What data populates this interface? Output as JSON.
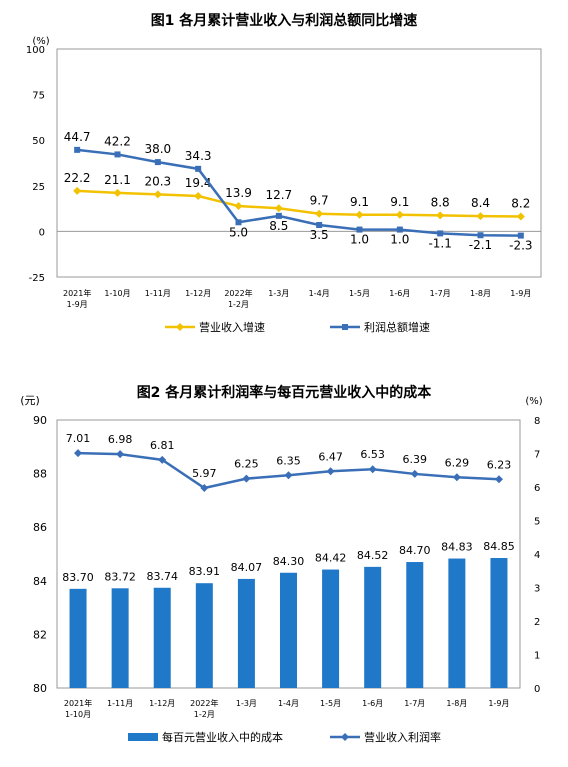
{
  "chart_data": [
    {
      "type": "line",
      "title": "图1  各月累计营业收入与利润总额同比增速",
      "y_unit": "(%)",
      "ylim": [
        -25,
        100
      ],
      "yticks": [
        -25,
        0,
        25,
        50,
        75,
        100
      ],
      "categories": [
        {
          "line1": "2021年",
          "line2": "1-9月"
        },
        {
          "line1": "1-10月",
          "line2": ""
        },
        {
          "line1": "1-11月",
          "line2": ""
        },
        {
          "line1": "1-12月",
          "line2": ""
        },
        {
          "line1": "2022年",
          "line2": "1-2月"
        },
        {
          "line1": "1-3月",
          "line2": ""
        },
        {
          "line1": "1-4月",
          "line2": ""
        },
        {
          "line1": "1-5月",
          "line2": ""
        },
        {
          "line1": "1-6月",
          "line2": ""
        },
        {
          "line1": "1-7月",
          "line2": ""
        },
        {
          "line1": "1-8月",
          "line2": ""
        },
        {
          "line1": "1-9月",
          "line2": ""
        }
      ],
      "series": [
        {
          "name": "营业收入增速",
          "color": "#F2C200",
          "marker": "diamond",
          "values": [
            22.2,
            21.1,
            20.3,
            19.4,
            13.9,
            12.7,
            9.7,
            9.1,
            9.1,
            8.8,
            8.4,
            8.2
          ],
          "labels": [
            "22.2",
            "21.1",
            "20.3",
            "19.4",
            "13.9",
            "12.7",
            "9.7",
            "9.1",
            "9.1",
            "8.8",
            "8.4",
            "8.2"
          ]
        },
        {
          "name": "利润总额增速",
          "color": "#3A6FB7",
          "marker": "square",
          "values": [
            44.7,
            42.2,
            38.0,
            34.3,
            5.0,
            8.5,
            3.5,
            1.0,
            1.0,
            -1.1,
            -2.1,
            -2.3
          ],
          "labels": [
            "44.7",
            "42.2",
            "38.0",
            "34.3",
            "5.0",
            "8.5",
            "3.5",
            "1.0",
            "1.0",
            "-1.1",
            "-2.1",
            "-2.3"
          ]
        }
      ],
      "legend_position": "bottom",
      "grid": false
    },
    {
      "type": "bar",
      "title": "图2  各月累计利润率与每百元营业收入中的成本",
      "y_unit_left": "(元)",
      "y_unit_right": "(%)",
      "ylim_left": [
        80,
        90
      ],
      "yticks_left": [
        80,
        82,
        84,
        86,
        88,
        90
      ],
      "ylim_right": [
        0,
        8
      ],
      "yticks_right": [
        0,
        1,
        2,
        3,
        4,
        5,
        6,
        7,
        8
      ],
      "categories": [
        {
          "line1": "2021年",
          "line2": "1-10月"
        },
        {
          "line1": "1-11月",
          "line2": ""
        },
        {
          "line1": "1-12月",
          "line2": ""
        },
        {
          "line1": "2022年",
          "line2": "1-2月"
        },
        {
          "line1": "1-3月",
          "line2": ""
        },
        {
          "line1": "1-4月",
          "line2": ""
        },
        {
          "line1": "1-5月",
          "line2": ""
        },
        {
          "line1": "1-6月",
          "line2": ""
        },
        {
          "line1": "1-7月",
          "line2": ""
        },
        {
          "line1": "1-8月",
          "line2": ""
        },
        {
          "line1": "1-9月",
          "line2": ""
        }
      ],
      "bar_series": {
        "name": "每百元营业收入中的成本",
        "color": "#1F78C8",
        "axis": "left",
        "values": [
          83.7,
          83.72,
          83.74,
          83.91,
          84.07,
          84.3,
          84.42,
          84.52,
          84.7,
          84.83,
          84.85
        ],
        "labels": [
          "83.70",
          "83.72",
          "83.74",
          "83.91",
          "84.07",
          "84.30",
          "84.42",
          "84.52",
          "84.70",
          "84.83",
          "84.85"
        ]
      },
      "line_series": {
        "name": "营业收入利润率",
        "color": "#3A6FB7",
        "marker": "diamond",
        "axis": "right",
        "values": [
          7.01,
          6.98,
          6.81,
          5.97,
          6.25,
          6.35,
          6.47,
          6.53,
          6.39,
          6.29,
          6.23
        ],
        "labels": [
          "7.01",
          "6.98",
          "6.81",
          "5.97",
          "6.25",
          "6.35",
          "6.47",
          "6.53",
          "6.39",
          "6.29",
          "6.23"
        ]
      },
      "legend_position": "bottom",
      "grid": false
    }
  ]
}
